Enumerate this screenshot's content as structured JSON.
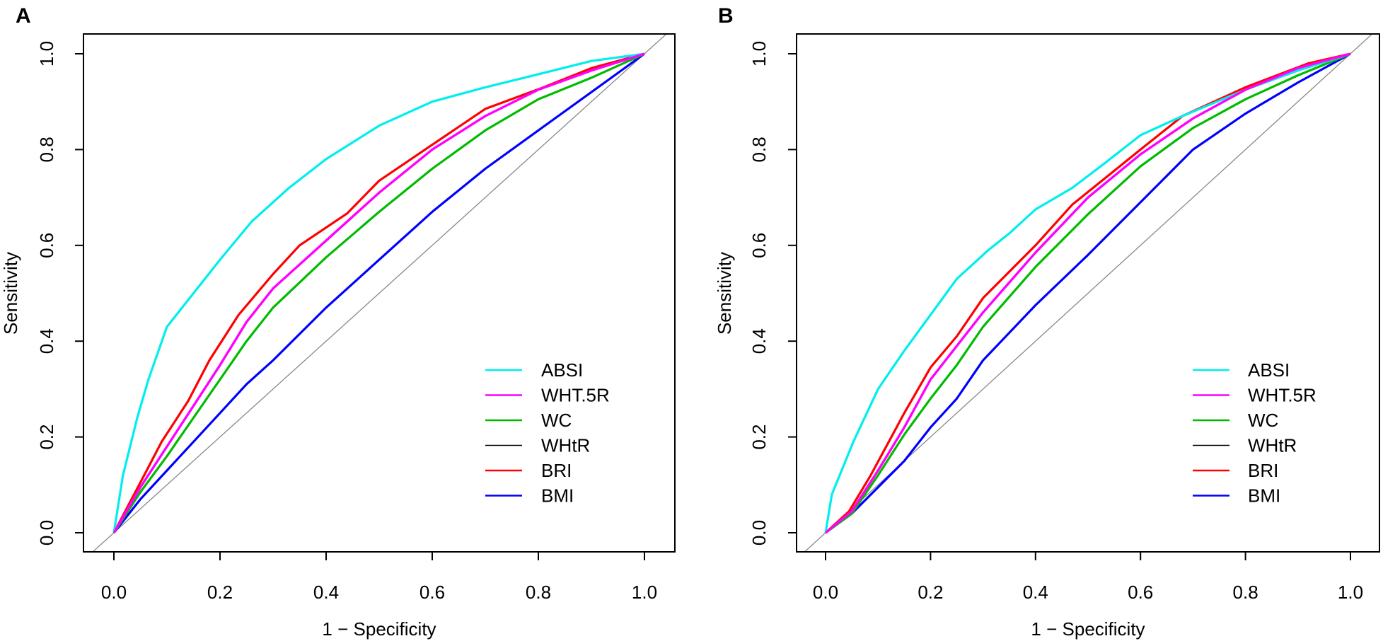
{
  "chart_data": [
    {
      "panel_label": "A",
      "type": "line",
      "xlabel": "1 − Specificity",
      "ylabel": "Sensitivity",
      "xlim": [
        0,
        1
      ],
      "ylim": [
        0,
        1
      ],
      "xticks": [
        "0.0",
        "0.2",
        "0.4",
        "0.6",
        "0.8",
        "1.0"
      ],
      "yticks": [
        "0.0",
        "0.2",
        "0.4",
        "0.6",
        "0.8",
        "1.0"
      ],
      "reference_line": "diagonal y = x",
      "legend_position": "bottom-right",
      "series": [
        {
          "name": "ABSI",
          "color": "#00EEEE",
          "points": [
            [
              0,
              0
            ],
            [
              0.017,
              0.12
            ],
            [
              0.044,
              0.24
            ],
            [
              0.065,
              0.32
            ],
            [
              0.1,
              0.43
            ],
            [
              0.15,
              0.5
            ],
            [
              0.2,
              0.57
            ],
            [
              0.26,
              0.65
            ],
            [
              0.33,
              0.72
            ],
            [
              0.4,
              0.78
            ],
            [
              0.5,
              0.85
            ],
            [
              0.6,
              0.9
            ],
            [
              0.7,
              0.93
            ],
            [
              0.81,
              0.96
            ],
            [
              0.9,
              0.985
            ],
            [
              1,
              1
            ]
          ]
        },
        {
          "name": "WHT.5R",
          "color": "#FF00FF",
          "points": [
            [
              0,
              0
            ],
            [
              0.05,
              0.095
            ],
            [
              0.1,
              0.18
            ],
            [
              0.15,
              0.265
            ],
            [
              0.2,
              0.35
            ],
            [
              0.25,
              0.44
            ],
            [
              0.3,
              0.51
            ],
            [
              0.4,
              0.61
            ],
            [
              0.5,
              0.71
            ],
            [
              0.6,
              0.8
            ],
            [
              0.7,
              0.87
            ],
            [
              0.8,
              0.925
            ],
            [
              0.9,
              0.965
            ],
            [
              1,
              1
            ]
          ]
        },
        {
          "name": "WC",
          "color": "#00BB00",
          "points": [
            [
              0,
              0
            ],
            [
              0.05,
              0.085
            ],
            [
              0.1,
              0.16
            ],
            [
              0.15,
              0.24
            ],
            [
              0.2,
              0.32
            ],
            [
              0.25,
              0.4
            ],
            [
              0.3,
              0.47
            ],
            [
              0.4,
              0.575
            ],
            [
              0.5,
              0.67
            ],
            [
              0.6,
              0.76
            ],
            [
              0.7,
              0.84
            ],
            [
              0.8,
              0.905
            ],
            [
              0.9,
              0.95
            ],
            [
              1,
              1
            ]
          ]
        },
        {
          "name": "WHtR",
          "color": "#000000",
          "points": [
            [
              0,
              0
            ],
            [
              0.05,
              0.095
            ],
            [
              0.1,
              0.18
            ],
            [
              0.15,
              0.265
            ],
            [
              0.2,
              0.35
            ],
            [
              0.25,
              0.44
            ],
            [
              0.3,
              0.51
            ],
            [
              0.4,
              0.61
            ],
            [
              0.5,
              0.71
            ],
            [
              0.6,
              0.8
            ],
            [
              0.7,
              0.87
            ],
            [
              0.8,
              0.925
            ],
            [
              0.9,
              0.965
            ],
            [
              1,
              1
            ]
          ]
        },
        {
          "name": "BRI",
          "color": "#FF0000",
          "points": [
            [
              0,
              0
            ],
            [
              0.05,
              0.105
            ],
            [
              0.09,
              0.19
            ],
            [
              0.14,
              0.275
            ],
            [
              0.18,
              0.36
            ],
            [
              0.235,
              0.455
            ],
            [
              0.3,
              0.54
            ],
            [
              0.35,
              0.6
            ],
            [
              0.44,
              0.667
            ],
            [
              0.5,
              0.735
            ],
            [
              0.6,
              0.81
            ],
            [
              0.7,
              0.885
            ],
            [
              0.81,
              0.93
            ],
            [
              0.9,
              0.97
            ],
            [
              1,
              1
            ]
          ]
        },
        {
          "name": "BMI",
          "color": "#0000FF",
          "points": [
            [
              0,
              0
            ],
            [
              0.05,
              0.07
            ],
            [
              0.1,
              0.13
            ],
            [
              0.15,
              0.19
            ],
            [
              0.2,
              0.25
            ],
            [
              0.25,
              0.31
            ],
            [
              0.3,
              0.36
            ],
            [
              0.4,
              0.47
            ],
            [
              0.5,
              0.57
            ],
            [
              0.6,
              0.67
            ],
            [
              0.7,
              0.76
            ],
            [
              0.8,
              0.84
            ],
            [
              0.9,
              0.92
            ],
            [
              1,
              1
            ]
          ]
        }
      ]
    },
    {
      "panel_label": "B",
      "type": "line",
      "xlabel": "1 − Specificity",
      "ylabel": "Sensitivity",
      "xlim": [
        0,
        1
      ],
      "ylim": [
        0,
        1
      ],
      "xticks": [
        "0.0",
        "0.2",
        "0.4",
        "0.6",
        "0.8",
        "1.0"
      ],
      "yticks": [
        "0.0",
        "0.2",
        "0.4",
        "0.6",
        "0.8",
        "1.0"
      ],
      "reference_line": "diagonal y = x",
      "legend_position": "bottom-right",
      "series": [
        {
          "name": "ABSI",
          "color": "#00EEEE",
          "points": [
            [
              0,
              0
            ],
            [
              0.012,
              0.08
            ],
            [
              0.053,
              0.19
            ],
            [
              0.1,
              0.3
            ],
            [
              0.15,
              0.38
            ],
            [
              0.2,
              0.455
            ],
            [
              0.25,
              0.53
            ],
            [
              0.31,
              0.59
            ],
            [
              0.35,
              0.625
            ],
            [
              0.4,
              0.675
            ],
            [
              0.47,
              0.72
            ],
            [
              0.53,
              0.77
            ],
            [
              0.6,
              0.83
            ],
            [
              0.68,
              0.87
            ],
            [
              0.8,
              0.925
            ],
            [
              0.9,
              0.965
            ],
            [
              1,
              1
            ]
          ]
        },
        {
          "name": "WHT.5R",
          "color": "#FF00FF",
          "points": [
            [
              0,
              0
            ],
            [
              0.05,
              0.045
            ],
            [
              0.1,
              0.13
            ],
            [
              0.15,
              0.22
            ],
            [
              0.2,
              0.32
            ],
            [
              0.25,
              0.39
            ],
            [
              0.3,
              0.46
            ],
            [
              0.4,
              0.585
            ],
            [
              0.5,
              0.7
            ],
            [
              0.6,
              0.79
            ],
            [
              0.7,
              0.865
            ],
            [
              0.8,
              0.925
            ],
            [
              0.9,
              0.97
            ],
            [
              1,
              1
            ]
          ]
        },
        {
          "name": "WC",
          "color": "#00BB00",
          "points": [
            [
              0,
              0
            ],
            [
              0.05,
              0.04
            ],
            [
              0.1,
              0.12
            ],
            [
              0.15,
              0.205
            ],
            [
              0.2,
              0.28
            ],
            [
              0.25,
              0.35
            ],
            [
              0.3,
              0.43
            ],
            [
              0.4,
              0.555
            ],
            [
              0.5,
              0.665
            ],
            [
              0.6,
              0.765
            ],
            [
              0.7,
              0.845
            ],
            [
              0.8,
              0.905
            ],
            [
              0.9,
              0.955
            ],
            [
              1,
              1
            ]
          ]
        },
        {
          "name": "WHtR",
          "color": "#000000",
          "points": [
            [
              0,
              0
            ],
            [
              0.05,
              0.045
            ],
            [
              0.1,
              0.13
            ],
            [
              0.15,
              0.22
            ],
            [
              0.2,
              0.32
            ],
            [
              0.25,
              0.39
            ],
            [
              0.3,
              0.46
            ],
            [
              0.4,
              0.585
            ],
            [
              0.5,
              0.7
            ],
            [
              0.6,
              0.79
            ],
            [
              0.7,
              0.865
            ],
            [
              0.8,
              0.925
            ],
            [
              0.9,
              0.97
            ],
            [
              1,
              1
            ]
          ]
        },
        {
          "name": "BRI",
          "color": "#FF0000",
          "points": [
            [
              0,
              0
            ],
            [
              0.045,
              0.045
            ],
            [
              0.086,
              0.12
            ],
            [
              0.15,
              0.25
            ],
            [
              0.2,
              0.345
            ],
            [
              0.25,
              0.41
            ],
            [
              0.3,
              0.49
            ],
            [
              0.4,
              0.6
            ],
            [
              0.47,
              0.685
            ],
            [
              0.6,
              0.8
            ],
            [
              0.68,
              0.87
            ],
            [
              0.8,
              0.93
            ],
            [
              0.92,
              0.98
            ],
            [
              1,
              1
            ]
          ]
        },
        {
          "name": "BMI",
          "color": "#0000FF",
          "points": [
            [
              0,
              0
            ],
            [
              0.05,
              0.04
            ],
            [
              0.1,
              0.095
            ],
            [
              0.15,
              0.15
            ],
            [
              0.2,
              0.22
            ],
            [
              0.25,
              0.28
            ],
            [
              0.3,
              0.36
            ],
            [
              0.4,
              0.475
            ],
            [
              0.5,
              0.58
            ],
            [
              0.6,
              0.69
            ],
            [
              0.7,
              0.8
            ],
            [
              0.8,
              0.875
            ],
            [
              0.9,
              0.94
            ],
            [
              1,
              1
            ]
          ]
        }
      ]
    }
  ]
}
